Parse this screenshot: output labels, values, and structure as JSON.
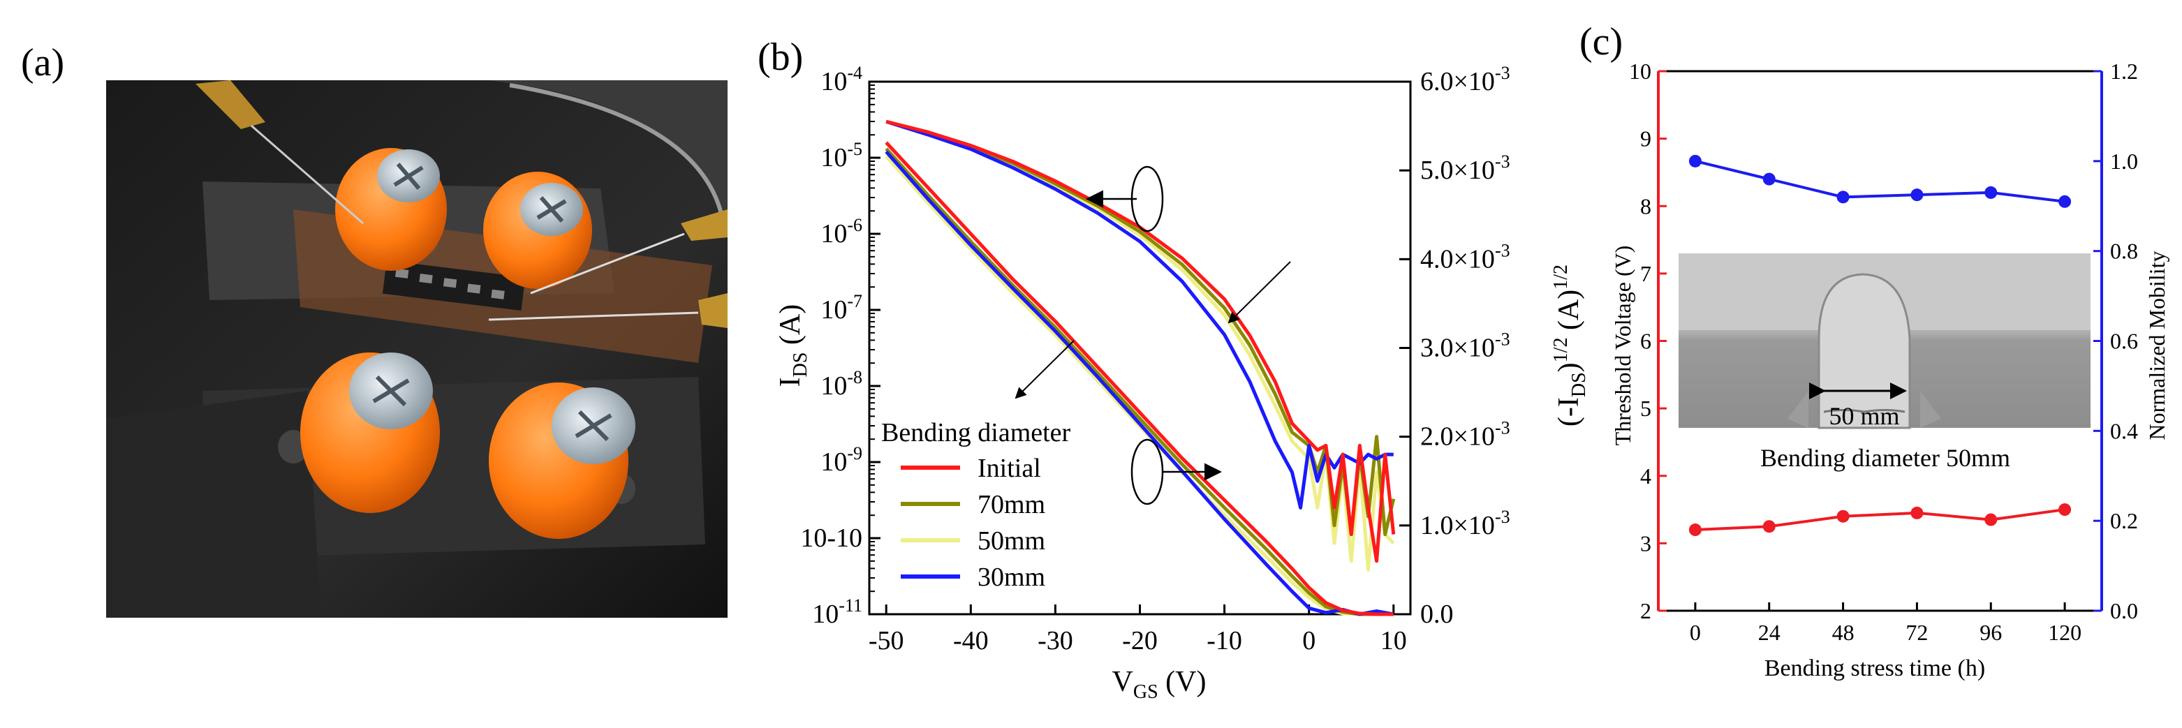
{
  "colors": {
    "initial": "#ff1a1a",
    "mm70": "#8a8a00",
    "mm50": "#eeee88",
    "mm30": "#1a1aff",
    "threshold": "#ee1c24",
    "mobility": "#1c1cee"
  },
  "panel_a": {
    "label": "(a)",
    "photo_description": "photo of flexible TFT sample mounted on bending fixture with orange-capped screws and probe needles"
  },
  "chart_data": [
    {
      "id": "b",
      "panel_label": "(b)",
      "type": "line",
      "xlabel_main": "V",
      "xlabel_sub": "GS",
      "xlabel_tail": " (V)",
      "xlim": [
        -52,
        12
      ],
      "xticks": [
        -50,
        -40,
        -30,
        -20,
        -10,
        0,
        10
      ],
      "xtick_labels": [
        "-50",
        "-40",
        "-30",
        "-20",
        "-10",
        "0",
        "10"
      ],
      "left_axis": {
        "scale": "log",
        "label_main": "I",
        "label_sub": "DS",
        "label_tail": " (A)",
        "ylim_exp": [
          -11,
          -4
        ],
        "tick_exponents": [
          -4,
          -5,
          -6,
          -7,
          -8,
          -9,
          -10,
          -11
        ],
        "tick_labels": [
          "10-4",
          "10-5",
          "10-6",
          "10-7",
          "10-8",
          "10-9",
          "10-10",
          "10-11"
        ]
      },
      "right_axis": {
        "scale": "linear",
        "label": "(-I_DS)^1/2 (A)^1/2",
        "label_parts": {
          "open": "(-I",
          "sub": "DS",
          "close": ")",
          "sup1": "1/2",
          "unit": " (A)",
          "sup2": "1/2"
        },
        "ylim": [
          0,
          0.006
        ],
        "ticks": [
          0,
          0.001,
          0.002,
          0.003,
          0.004,
          0.005,
          0.006
        ],
        "tick_labels": [
          "0.0",
          "1.0×10-3",
          "2.0×10-3",
          "3.0×10-3",
          "4.0×10-3",
          "5.0×10-3",
          "6.0×10-3"
        ]
      },
      "legend": {
        "title": "Bending diameter",
        "placement": "lower-left",
        "entries": [
          "Initial",
          "70mm",
          "50mm",
          "30mm"
        ]
      },
      "series_log_IDS": [
        {
          "name": "Initial",
          "x": [
            -50,
            -45,
            -40,
            -35,
            -30,
            -25,
            -20,
            -15,
            -10,
            -5,
            -2,
            0,
            2,
            4,
            6,
            8,
            10
          ],
          "y_log10": [
            -4.8,
            -5.4,
            -6.0,
            -6.6,
            -7.15,
            -7.75,
            -8.35,
            -8.95,
            -9.5,
            -10.05,
            -10.4,
            -10.65,
            -10.85,
            -10.95,
            -10.99,
            -11,
            -11
          ]
        },
        {
          "name": "70mm",
          "x": [
            -50,
            -45,
            -40,
            -35,
            -30,
            -25,
            -20,
            -15,
            -10,
            -5,
            -2,
            0,
            2,
            4,
            6,
            8,
            10
          ],
          "y_log10": [
            -4.88,
            -5.5,
            -6.1,
            -6.68,
            -7.23,
            -7.83,
            -8.43,
            -9.03,
            -9.6,
            -10.15,
            -10.5,
            -10.72,
            -10.9,
            -10.97,
            -11,
            -11,
            -11
          ]
        },
        {
          "name": "50mm",
          "x": [
            -50,
            -45,
            -40,
            -35,
            -30,
            -25,
            -20,
            -15,
            -10,
            -5,
            -2,
            0,
            2,
            4,
            6,
            8,
            10
          ],
          "y_log10": [
            -4.98,
            -5.6,
            -6.2,
            -6.78,
            -7.33,
            -7.93,
            -8.53,
            -9.13,
            -9.7,
            -10.25,
            -10.58,
            -10.78,
            -10.93,
            -10.99,
            -11,
            -11,
            -11
          ]
        },
        {
          "name": "30mm",
          "x": [
            -50,
            -45,
            -40,
            -35,
            -30,
            -25,
            -20,
            -15,
            -10,
            -5,
            -2,
            0,
            2,
            4,
            6,
            8,
            10
          ],
          "y_log10": [
            -4.92,
            -5.55,
            -6.15,
            -6.72,
            -7.28,
            -7.88,
            -8.5,
            -9.12,
            -9.75,
            -10.35,
            -10.7,
            -10.92,
            -10.98,
            -10.94,
            -11,
            -10.96,
            -11
          ]
        }
      ],
      "series_sqrt_IDS": [
        {
          "name": "Initial",
          "x": [
            -50,
            -45,
            -40,
            -35,
            -30,
            -25,
            -20,
            -15,
            -10,
            -7,
            -4,
            -2,
            0,
            1,
            2,
            3,
            4,
            5,
            6,
            7,
            8,
            9,
            10
          ],
          "y": [
            0.00555,
            0.00543,
            0.00528,
            0.0051,
            0.00488,
            0.00463,
            0.00436,
            0.00401,
            0.00355,
            0.00314,
            0.00262,
            0.00215,
            0.00195,
            0.00185,
            0.0019,
            0.0012,
            0.0018,
            0.0009,
            0.0019,
            0.0012,
            0.0006,
            0.0018,
            0.0009
          ]
        },
        {
          "name": "70mm",
          "x": [
            -50,
            -45,
            -40,
            -35,
            -30,
            -25,
            -20,
            -15,
            -10,
            -7,
            -4,
            -2,
            0,
            1,
            2,
            3,
            4,
            5,
            6,
            7,
            8,
            9,
            10
          ],
          "y": [
            0.00555,
            0.00542,
            0.00527,
            0.00508,
            0.00485,
            0.0046,
            0.00431,
            0.00394,
            0.00345,
            0.00303,
            0.00248,
            0.00205,
            0.0019,
            0.0016,
            0.0019,
            0.001,
            0.0017,
            0.0009,
            0.0018,
            0.0011,
            0.002,
            0.0009,
            0.0013
          ]
        },
        {
          "name": "50mm",
          "x": [
            -50,
            -45,
            -40,
            -35,
            -30,
            -25,
            -20,
            -15,
            -10,
            -7,
            -4,
            -2,
            0,
            1,
            2,
            3,
            4,
            5,
            6,
            7,
            8,
            9,
            10
          ],
          "y": [
            0.00555,
            0.00541,
            0.00526,
            0.00506,
            0.00483,
            0.00457,
            0.00427,
            0.00388,
            0.00337,
            0.00292,
            0.00235,
            0.00195,
            0.00175,
            0.0012,
            0.0018,
            0.0008,
            0.0016,
            0.0006,
            0.0017,
            0.0005,
            0.0016,
            0.0009,
            0.0008
          ]
        },
        {
          "name": "30mm",
          "x": [
            -50,
            -45,
            -40,
            -35,
            -30,
            -25,
            -20,
            -15,
            -10,
            -7,
            -4,
            -2,
            -1,
            0,
            1,
            2,
            3,
            4,
            5,
            6,
            7,
            8,
            9,
            10
          ],
          "y": [
            0.00555,
            0.0054,
            0.00524,
            0.00503,
            0.00479,
            0.00452,
            0.0042,
            0.00375,
            0.00315,
            0.00262,
            0.00195,
            0.0016,
            0.0012,
            0.0019,
            0.0015,
            0.0018,
            0.00165,
            0.0018,
            0.00175,
            0.0017,
            0.0018,
            0.00175,
            0.0018,
            0.0018
          ]
        }
      ],
      "annotations": {
        "upper_ellipse_center": [
          -20,
          -5.8
        ],
        "lower_ellipse_center": [
          -20,
          -9.15
        ],
        "arrow_left_target_note": "points to left axis",
        "arrow_right_target_note": "points to right axis"
      }
    },
    {
      "id": "c",
      "panel_label": "(c)",
      "type": "line",
      "xlabel": "Bending stress time (h)",
      "x": [
        0,
        24,
        48,
        72,
        96,
        120
      ],
      "xticks": [
        0,
        24,
        48,
        72,
        96,
        120
      ],
      "xlim": [
        -12,
        132
      ],
      "left_axis": {
        "label": "Threshold Voltage (V)",
        "ylim": [
          2,
          10
        ],
        "ticks": [
          2,
          3,
          4,
          5,
          6,
          7,
          8,
          9,
          10
        ]
      },
      "right_axis": {
        "label": "Normalized Mobility",
        "ylim": [
          0,
          1.2
        ],
        "ticks": [
          0.0,
          0.2,
          0.4,
          0.6,
          0.8,
          1.0,
          1.2
        ],
        "tick_labels": [
          "0.0",
          "0.2",
          "0.4",
          "0.6",
          "0.8",
          "1.0",
          "1.2"
        ]
      },
      "series": [
        {
          "name": "Threshold Voltage",
          "axis": "left",
          "values": [
            3.2,
            3.25,
            3.4,
            3.45,
            3.35,
            3.5
          ]
        },
        {
          "name": "Normalized Mobility",
          "axis": "right",
          "values": [
            1.0,
            0.96,
            0.92,
            0.925,
            0.93,
            0.91
          ]
        }
      ],
      "inset": {
        "dimension_label": "50 mm",
        "caption": "Bending diameter 50mm"
      }
    }
  ]
}
